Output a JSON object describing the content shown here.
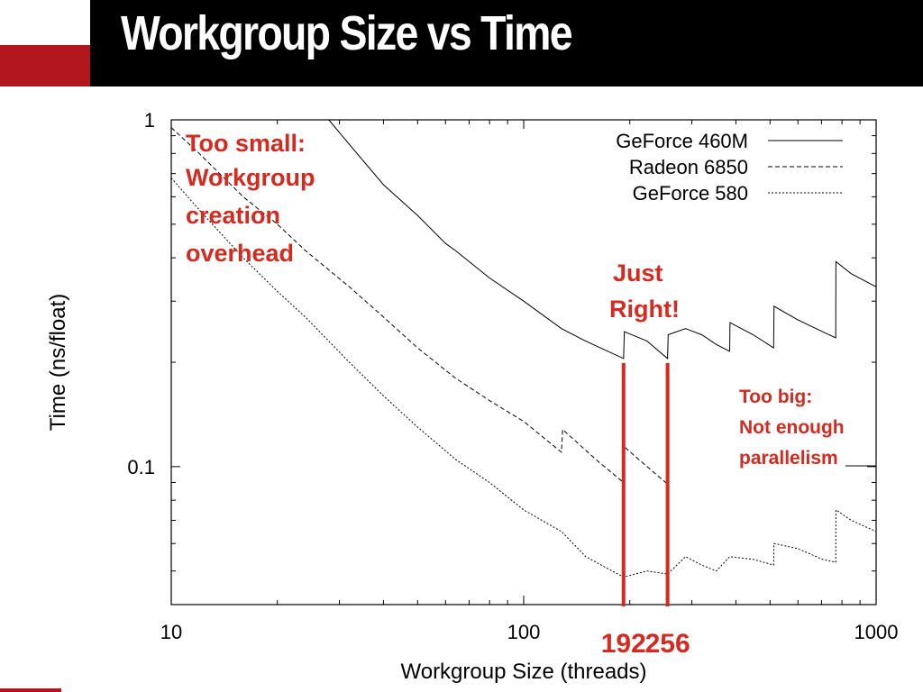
{
  "slide": {
    "title": "Workgroup Size vs Time"
  },
  "colors": {
    "accent": "#b0161c",
    "annotation": "#d42a1f",
    "title_bar": "#000000"
  },
  "chart_data": {
    "type": "line",
    "title": "",
    "xlabel": "Workgroup Size (threads)",
    "ylabel": "Time (ns/float)",
    "x_scale": "log",
    "y_scale": "log",
    "xlim": [
      10,
      1000
    ],
    "ylim": [
      0.04,
      1
    ],
    "x_ticks": [
      {
        "value": 10,
        "label": "10"
      },
      {
        "value": 100,
        "label": "100"
      },
      {
        "value": 1000,
        "label": "1000"
      }
    ],
    "y_ticks": [
      {
        "value": 0.1,
        "label": "0.1"
      },
      {
        "value": 1,
        "label": "1"
      }
    ],
    "grid": false,
    "legend_position": "top-right",
    "series": [
      {
        "name": "GeForce 460M",
        "style": "solid",
        "points": [
          [
            28,
            1.0
          ],
          [
            32,
            0.85
          ],
          [
            40,
            0.65
          ],
          [
            50,
            0.53
          ],
          [
            60,
            0.44
          ],
          [
            64,
            0.42
          ],
          [
            80,
            0.35
          ],
          [
            100,
            0.3
          ],
          [
            128,
            0.25
          ],
          [
            150,
            0.23
          ],
          [
            192,
            0.205
          ],
          [
            193,
            0.245
          ],
          [
            224,
            0.23
          ],
          [
            256,
            0.205
          ],
          [
            257,
            0.24
          ],
          [
            288,
            0.25
          ],
          [
            320,
            0.24
          ],
          [
            352,
            0.225
          ],
          [
            384,
            0.215
          ],
          [
            385,
            0.26
          ],
          [
            448,
            0.24
          ],
          [
            512,
            0.22
          ],
          [
            513,
            0.29
          ],
          [
            600,
            0.265
          ],
          [
            704,
            0.245
          ],
          [
            768,
            0.235
          ],
          [
            769,
            0.39
          ],
          [
            850,
            0.36
          ],
          [
            1000,
            0.33
          ]
        ]
      },
      {
        "name": "Radeon 6850",
        "style": "dashed",
        "points": [
          [
            10,
            0.95
          ],
          [
            12,
            0.8
          ],
          [
            16,
            0.6
          ],
          [
            20,
            0.5
          ],
          [
            24,
            0.42
          ],
          [
            32,
            0.33
          ],
          [
            40,
            0.27
          ],
          [
            50,
            0.22
          ],
          [
            64,
            0.18
          ],
          [
            80,
            0.155
          ],
          [
            100,
            0.135
          ],
          [
            128,
            0.11
          ],
          [
            129,
            0.128
          ],
          [
            160,
            0.105
          ],
          [
            192,
            0.09
          ],
          [
            193,
            0.114
          ],
          [
            224,
            0.1
          ],
          [
            256,
            0.089
          ]
        ]
      },
      {
        "name": "GeForce 580",
        "style": "dotted",
        "points": [
          [
            10,
            0.68
          ],
          [
            12,
            0.55
          ],
          [
            16,
            0.4
          ],
          [
            20,
            0.32
          ],
          [
            24,
            0.27
          ],
          [
            32,
            0.2
          ],
          [
            40,
            0.16
          ],
          [
            50,
            0.13
          ],
          [
            64,
            0.105
          ],
          [
            80,
            0.09
          ],
          [
            100,
            0.075
          ],
          [
            128,
            0.065
          ],
          [
            150,
            0.055
          ],
          [
            192,
            0.048
          ],
          [
            224,
            0.05
          ],
          [
            256,
            0.049
          ],
          [
            288,
            0.055
          ],
          [
            320,
            0.052
          ],
          [
            352,
            0.05
          ],
          [
            384,
            0.055
          ],
          [
            448,
            0.054
          ],
          [
            512,
            0.052
          ],
          [
            513,
            0.06
          ],
          [
            600,
            0.058
          ],
          [
            704,
            0.054
          ],
          [
            768,
            0.053
          ],
          [
            769,
            0.075
          ],
          [
            850,
            0.07
          ],
          [
            1000,
            0.065
          ]
        ]
      }
    ],
    "markers": [
      {
        "x": 192,
        "label": "192",
        "y_from": 0.04,
        "y_to": 0.205
      },
      {
        "x": 256,
        "label": "256",
        "y_from": 0.04,
        "y_to": 0.205
      }
    ],
    "annotations": [
      {
        "id": "too-small",
        "lines": [
          "Too small:",
          "Workgroup",
          "creation",
          "overhead"
        ]
      },
      {
        "id": "just-right",
        "lines": [
          "Just",
          "Right!"
        ]
      },
      {
        "id": "too-big",
        "lines": [
          "Too big:",
          "Not enough",
          "parallelism"
        ]
      }
    ]
  }
}
